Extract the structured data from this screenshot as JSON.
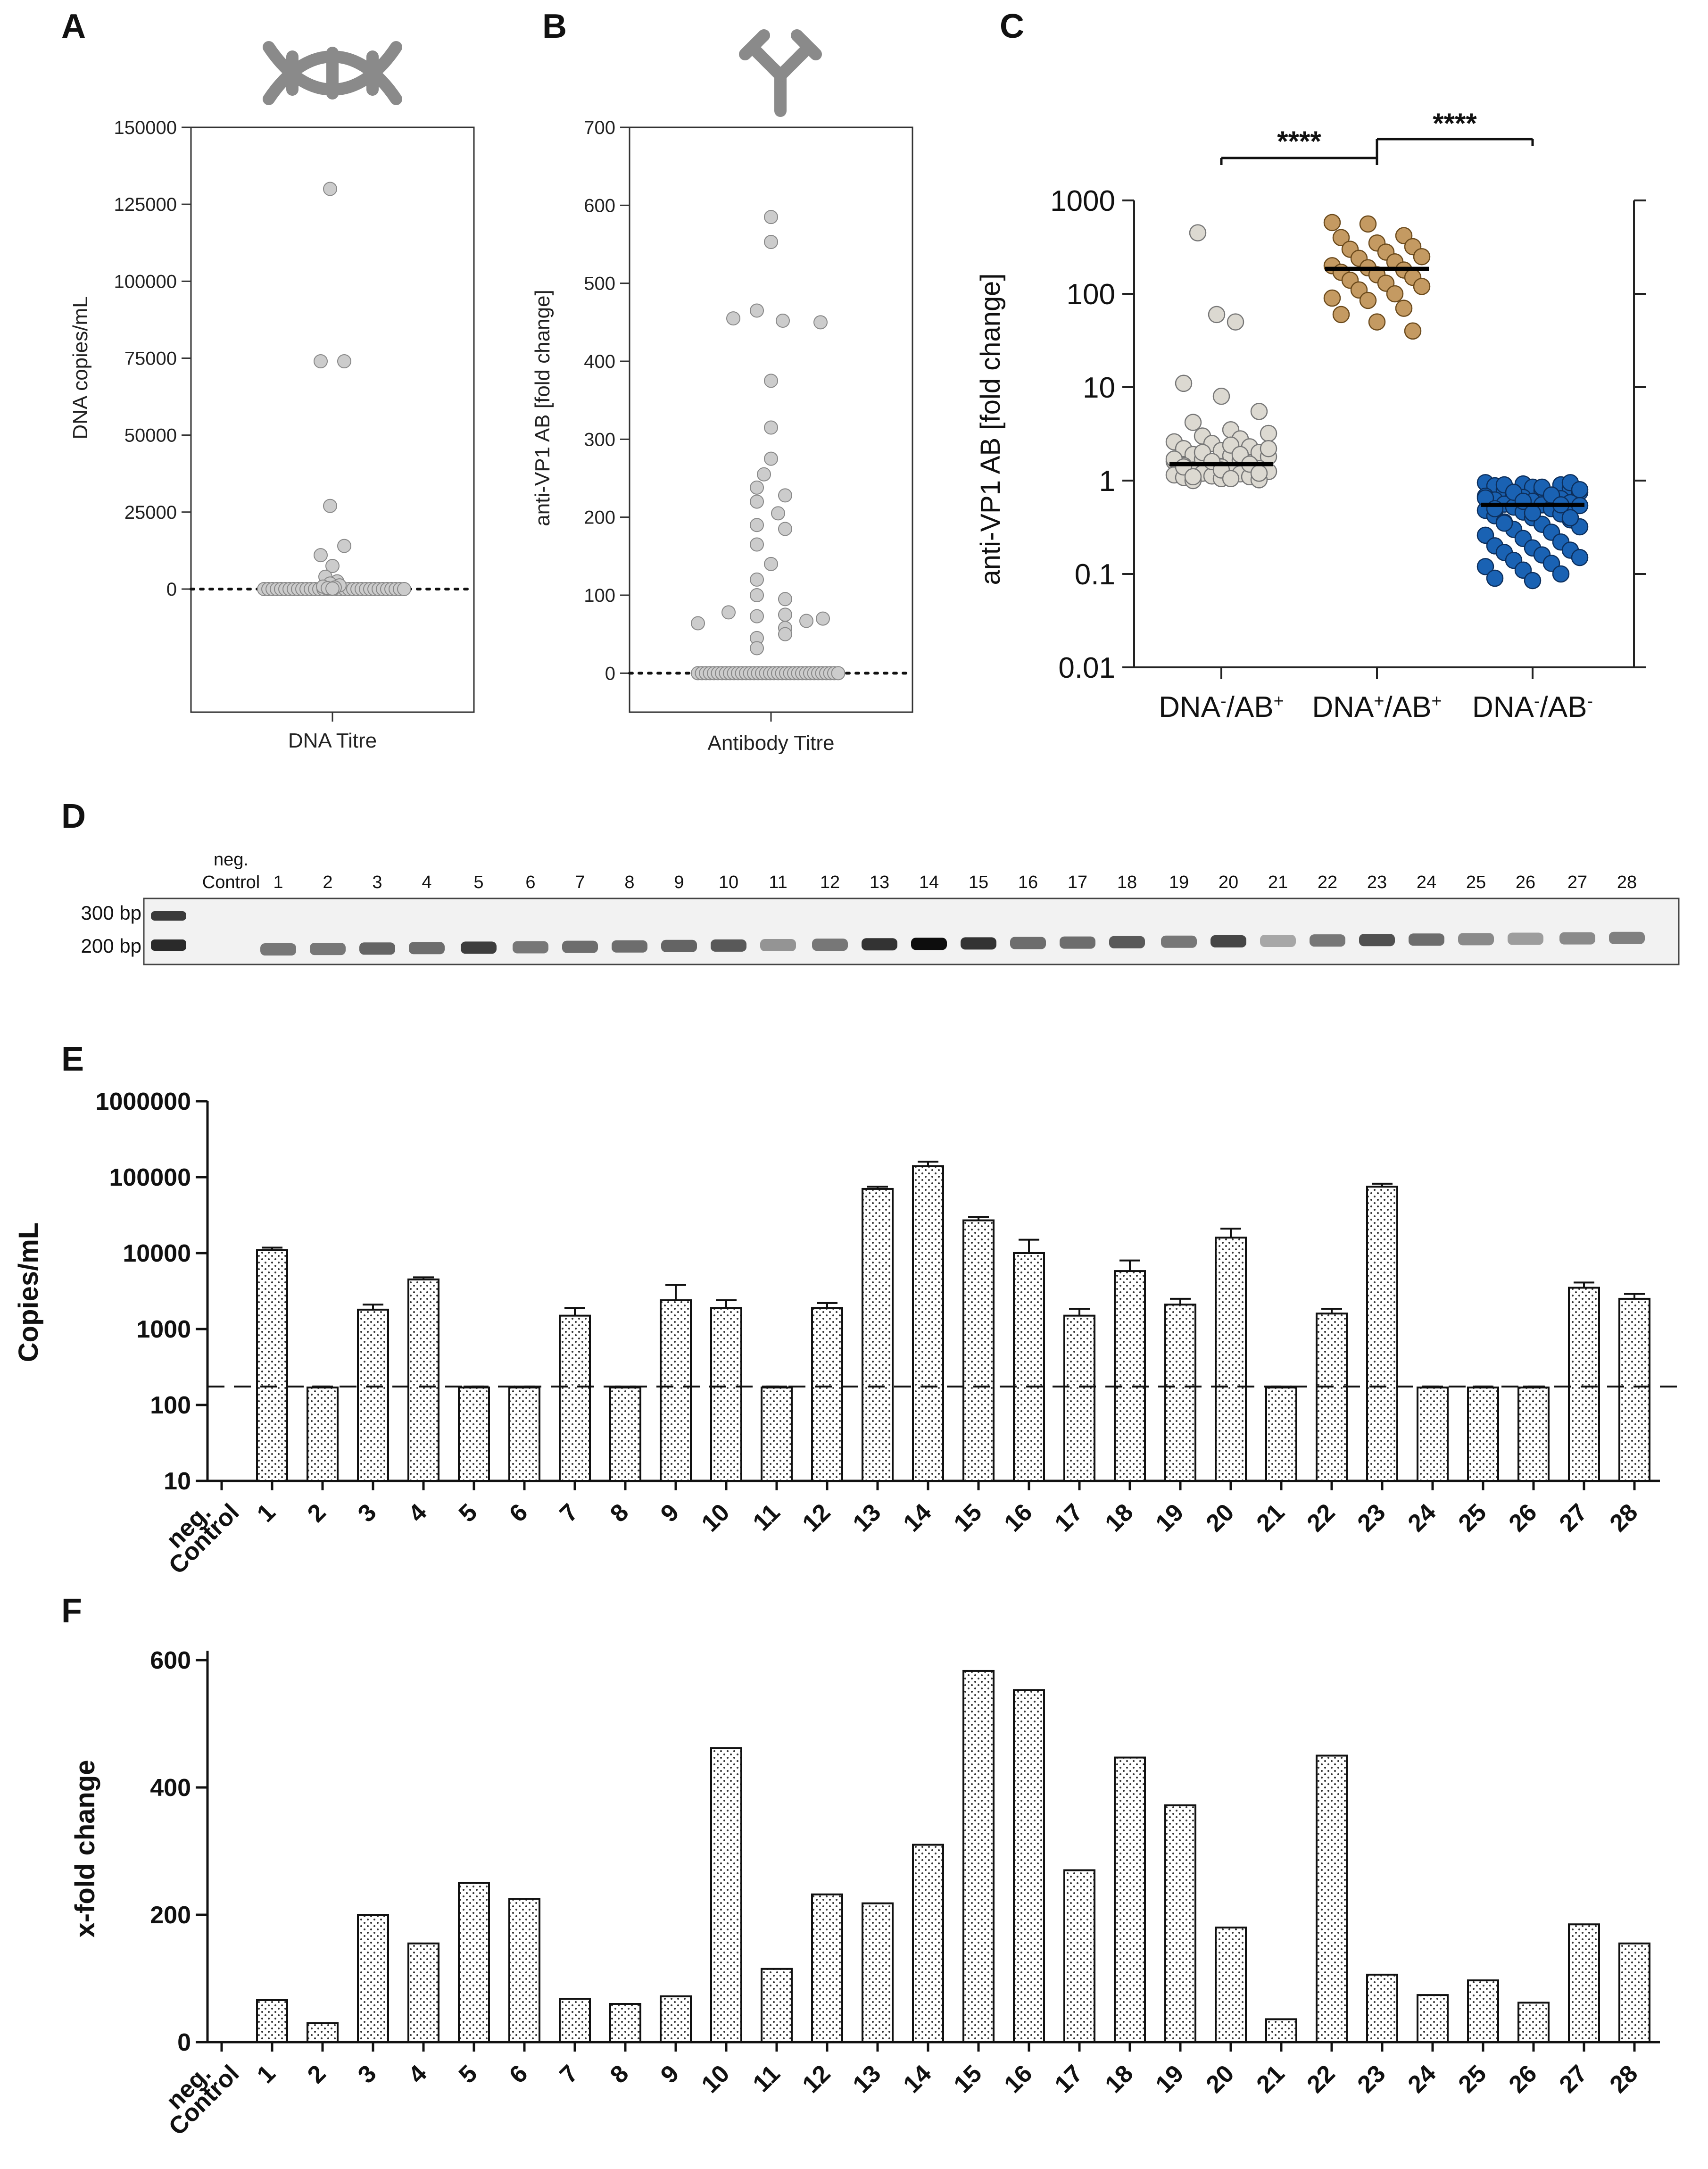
{
  "panels": {
    "A": {
      "letter": "A",
      "icon": "dna-icon",
      "yticks": [
        "150000",
        "125000",
        "100000",
        "75000",
        "50000",
        "25000",
        "0"
      ],
      "ylabel": "DNA copies/mL",
      "xlabel": "DNA Titre",
      "dot_color": "#cccccc"
    },
    "B": {
      "letter": "B",
      "icon": "antibody-icon",
      "yticks": [
        "700",
        "600",
        "500",
        "400",
        "300",
        "200",
        "100",
        "0"
      ],
      "ylabel": "anti-VP1 AB  [fold change]",
      "xlabel": "Antibody Titre",
      "dot_color": "#cccccc"
    },
    "C": {
      "letter": "C",
      "yticks": [
        "1000",
        "100",
        "10",
        "1",
        "0.1",
        "0.01"
      ],
      "ylabel": "anti-VP1 AB [fold change]",
      "groups": [
        {
          "pre": "DNA",
          "sup1": "-",
          "mid": "/AB",
          "sup2": "+",
          "color": "#dcd9d1"
        },
        {
          "pre": "DNA",
          "sup1": "+",
          "mid": "/AB",
          "sup2": "+",
          "color": "#c49a62"
        },
        {
          "pre": "DNA",
          "sup1": "-",
          "mid": "/AB",
          "sup2": "-",
          "color": "#1a62b3"
        }
      ],
      "significance": [
        "****",
        "****"
      ]
    },
    "D": {
      "letter": "D",
      "neg_label_1": "neg.",
      "neg_label_2": "Control",
      "lanes": [
        "1",
        "2",
        "3",
        "4",
        "5",
        "6",
        "7",
        "8",
        "9",
        "10",
        "11",
        "12",
        "13",
        "14",
        "15",
        "16",
        "17",
        "18",
        "19",
        "20",
        "21",
        "22",
        "23",
        "24",
        "25",
        "26",
        "27",
        "28"
      ],
      "marker_300": "300 bp",
      "marker_200": "200 bp"
    },
    "E": {
      "letter": "E",
      "yticks": [
        "1000000",
        "100000",
        "10000",
        "1000",
        "100",
        "10"
      ],
      "ylabel": "Copies/mL"
    },
    "F": {
      "letter": "F",
      "yticks": [
        "600",
        "400",
        "200",
        "0"
      ],
      "ylabel": "x-fold change"
    }
  },
  "chart_data": [
    {
      "panel": "A",
      "type": "scatter",
      "xlabel": "DNA Titre",
      "ylabel": "DNA copies/mL",
      "ylim": [
        -40000,
        150000
      ],
      "yscale": "linear",
      "baseline": 0,
      "values": [
        130000,
        74000,
        74000,
        27000,
        14000,
        11000,
        7500,
        4000,
        2500,
        1800,
        1200,
        800,
        500,
        300,
        150
      ]
    },
    {
      "panel": "B",
      "type": "scatter",
      "xlabel": "Antibody Titre",
      "ylabel": "anti-VP1 AB  [fold change]",
      "ylim": [
        -50,
        700
      ],
      "yscale": "linear",
      "baseline": 0,
      "values": [
        585,
        553,
        465,
        455,
        452,
        450,
        375,
        315,
        275,
        255,
        238,
        228,
        220,
        205,
        190,
        185,
        165,
        140,
        120,
        100,
        95,
        78,
        75,
        73,
        70,
        67,
        64,
        58,
        50,
        45,
        32
      ]
    },
    {
      "panel": "C",
      "type": "scatter",
      "ylabel": "anti-VP1 AB [fold change]",
      "yscale": "log",
      "ylim": [
        0.01,
        1000
      ],
      "categories": [
        "DNA-/AB+",
        "DNA+/AB+",
        "DNA-/AB-"
      ],
      "medians": [
        1.5,
        185,
        0.55
      ],
      "series": [
        {
          "values": [
            450,
            60,
            50,
            11,
            8,
            5.5,
            4.2,
            3.5,
            3.2,
            3.0,
            2.8,
            2.6,
            2.5,
            2.3,
            2.2,
            2.1,
            2.0,
            1.9,
            1.85,
            1.8,
            1.7,
            1.65,
            1.6,
            1.55,
            1.5,
            1.45,
            1.4,
            1.35,
            1.3,
            1.28,
            1.25,
            1.2,
            1.18,
            1.15,
            1.12,
            1.1,
            1.08,
            1.05,
            1.02,
            1.0,
            2.4,
            2.2,
            2.0,
            1.9,
            1.7,
            1.6,
            1.5,
            1.4,
            1.3,
            1.2,
            1.1,
            1.05
          ]
        },
        {
          "values": [
            580,
            560,
            420,
            400,
            350,
            320,
            300,
            280,
            250,
            240,
            220,
            200,
            190,
            180,
            170,
            160,
            150,
            140,
            130,
            120,
            110,
            100,
            90,
            85,
            70,
            60,
            50,
            40
          ]
        },
        {
          "values": [
            0.95,
            0.92,
            0.9,
            0.88,
            0.85,
            0.83,
            0.8,
            0.78,
            0.75,
            0.72,
            0.7,
            0.68,
            0.66,
            0.64,
            0.62,
            0.6,
            0.58,
            0.56,
            0.55,
            0.54,
            0.52,
            0.5,
            0.48,
            0.46,
            0.44,
            0.42,
            0.4,
            0.38,
            0.36,
            0.34,
            0.32,
            0.3,
            0.28,
            0.26,
            0.24,
            0.22,
            0.2,
            0.19,
            0.18,
            0.17,
            0.16,
            0.15,
            0.14,
            0.13,
            0.12,
            0.11,
            0.1,
            0.09,
            0.085,
            0.95,
            0.9,
            0.85,
            0.8,
            0.75,
            0.7,
            0.65,
            0.6,
            0.55,
            0.5,
            0.45,
            0.4,
            0.35
          ]
        }
      ]
    },
    {
      "panel": "D",
      "type": "table",
      "band_intensity": [
        0.45,
        0.45,
        0.55,
        0.5,
        0.75,
        0.45,
        0.5,
        0.5,
        0.55,
        0.6,
        0.3,
        0.45,
        0.8,
        1.0,
        0.8,
        0.5,
        0.5,
        0.6,
        0.45,
        0.7,
        0.2,
        0.45,
        0.65,
        0.5,
        0.35,
        0.25,
        0.35,
        0.4
      ]
    },
    {
      "panel": "E",
      "type": "bar",
      "yscale": "log",
      "ylim": [
        10,
        1000000
      ],
      "ylabel": "Copies/mL",
      "categories": [
        "neg. Control",
        "1",
        "2",
        "3",
        "4",
        "5",
        "6",
        "7",
        "8",
        "9",
        "10",
        "11",
        "12",
        "13",
        "14",
        "15",
        "16",
        "17",
        "18",
        "19",
        "20",
        "21",
        "22",
        "23",
        "24",
        "25",
        "26",
        "27",
        "28"
      ],
      "values": [
        null,
        11000,
        170,
        1800,
        4500,
        170,
        170,
        1500,
        170,
        2400,
        1900,
        170,
        1900,
        70000,
        140000,
        27000,
        10000,
        1500,
        5800,
        2100,
        16000,
        170,
        1600,
        75000,
        170,
        170,
        170,
        3500,
        2500
      ],
      "errors": [
        null,
        11800,
        175,
        2100,
        4800,
        175,
        175,
        1900,
        175,
        3800,
        2400,
        175,
        2200,
        75000,
        160000,
        30000,
        15000,
        1850,
        8000,
        2500,
        21000,
        175,
        1850,
        82000,
        175,
        175,
        175,
        4100,
        2900
      ],
      "threshold": 175
    },
    {
      "panel": "F",
      "type": "bar",
      "ylim": [
        0,
        600
      ],
      "ylabel": "x-fold change",
      "categories": [
        "neg. Control",
        "1",
        "2",
        "3",
        "4",
        "5",
        "6",
        "7",
        "8",
        "9",
        "10",
        "11",
        "12",
        "13",
        "14",
        "15",
        "16",
        "17",
        "18",
        "19",
        "20",
        "21",
        "22",
        "23",
        "24",
        "25",
        "26",
        "27",
        "28"
      ],
      "values": [
        0,
        66,
        30,
        200,
        155,
        250,
        225,
        68,
        60,
        72,
        462,
        115,
        232,
        218,
        310,
        583,
        553,
        270,
        447,
        372,
        180,
        36,
        450,
        106,
        74,
        97,
        62,
        185,
        155
      ]
    }
  ]
}
